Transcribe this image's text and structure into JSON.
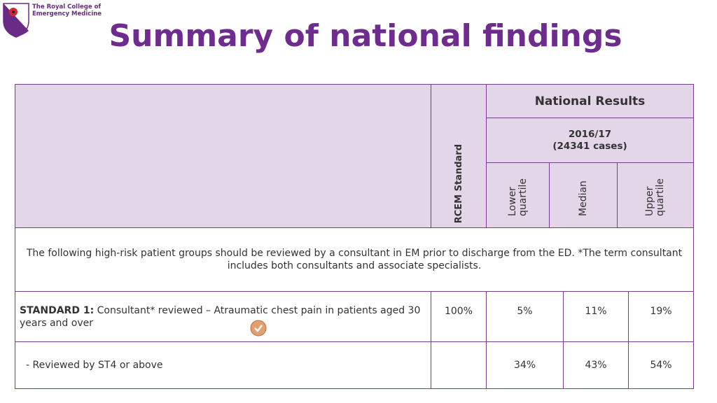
{
  "logo": {
    "lines": [
      "The Royal College of",
      "Emergency Medicine"
    ]
  },
  "title": "Summary of national findings",
  "table": {
    "header": {
      "rcem": "RCEM Standard",
      "group": "National Results",
      "period": "2016/17",
      "cases": "(24341 cases)",
      "columns": [
        "Lower quartile",
        "Median",
        "Upper quartile"
      ]
    },
    "intro": "The following high-risk patient groups should be reviewed by a consultant in EM prior to discharge from the ED.  *The term consultant includes both consultants and associate specialists.",
    "rows": [
      {
        "label_bold": "STANDARD 1:",
        "label": "Consultant* reviewed – Atraumatic chest pain in patients aged 30 years and over",
        "standard": "100%",
        "values": [
          "5%",
          "11%",
          "19%"
        ]
      },
      {
        "label": "- Reviewed by ST4 or above",
        "values": [
          "34%",
          "43%",
          "54%"
        ]
      }
    ]
  }
}
